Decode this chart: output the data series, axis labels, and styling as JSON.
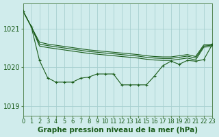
{
  "background_color": "#d0ecec",
  "grid_color": "#a8d0d0",
  "line_color": "#1a5c1a",
  "xlim": [
    0,
    23
  ],
  "ylim": [
    1018.75,
    1021.65
  ],
  "yticks": [
    1019,
    1020,
    1021
  ],
  "ytick_labels": [
    "1019",
    "1020",
    "1021"
  ],
  "hours": [
    0,
    1,
    2,
    3,
    4,
    5,
    6,
    7,
    8,
    9,
    10,
    11,
    12,
    13,
    14,
    15,
    16,
    17,
    18,
    19,
    20,
    21,
    22,
    23
  ],
  "xtick_labels": [
    "0",
    "1",
    "2",
    "3",
    "4",
    "5",
    "6",
    "7",
    "8",
    "9",
    "10",
    "11",
    "12",
    "13",
    "14",
    "15",
    "16",
    "17",
    "18",
    "19",
    "20",
    "21",
    "22",
    "23"
  ],
  "series_top": [
    1021.45,
    1021.05,
    1020.65,
    1020.6,
    1020.57,
    1020.54,
    1020.51,
    1020.48,
    1020.45,
    1020.43,
    1020.41,
    1020.39,
    1020.37,
    1020.35,
    1020.33,
    1020.3,
    1020.28,
    1020.27,
    1020.27,
    1020.3,
    1020.33,
    1020.28,
    1020.58,
    1020.6
  ],
  "series_mid1": [
    1021.45,
    1021.05,
    1020.6,
    1020.56,
    1020.53,
    1020.5,
    1020.47,
    1020.44,
    1020.41,
    1020.39,
    1020.37,
    1020.35,
    1020.33,
    1020.31,
    1020.29,
    1020.26,
    1020.24,
    1020.23,
    1020.23,
    1020.26,
    1020.29,
    1020.24,
    1020.55,
    1020.57
  ],
  "series_mid2": [
    1021.45,
    1021.05,
    1020.55,
    1020.51,
    1020.48,
    1020.45,
    1020.42,
    1020.39,
    1020.36,
    1020.34,
    1020.32,
    1020.3,
    1020.28,
    1020.26,
    1020.24,
    1020.21,
    1020.19,
    1020.18,
    1020.18,
    1020.21,
    1020.24,
    1020.19,
    1020.52,
    1020.54
  ],
  "series_jagged": [
    1021.45,
    1021.05,
    1020.18,
    1019.73,
    1019.62,
    1019.62,
    1019.62,
    1019.72,
    1019.75,
    1019.83,
    1019.83,
    1019.83,
    1019.55,
    1019.55,
    1019.55,
    1019.55,
    1019.78,
    1020.04,
    1020.16,
    1020.08,
    1020.18,
    1020.16,
    1020.2,
    1020.58
  ],
  "title": "Graphe pression niveau de la mer (hPa)",
  "title_fontsize": 7.5,
  "tick_fontsize": 6
}
